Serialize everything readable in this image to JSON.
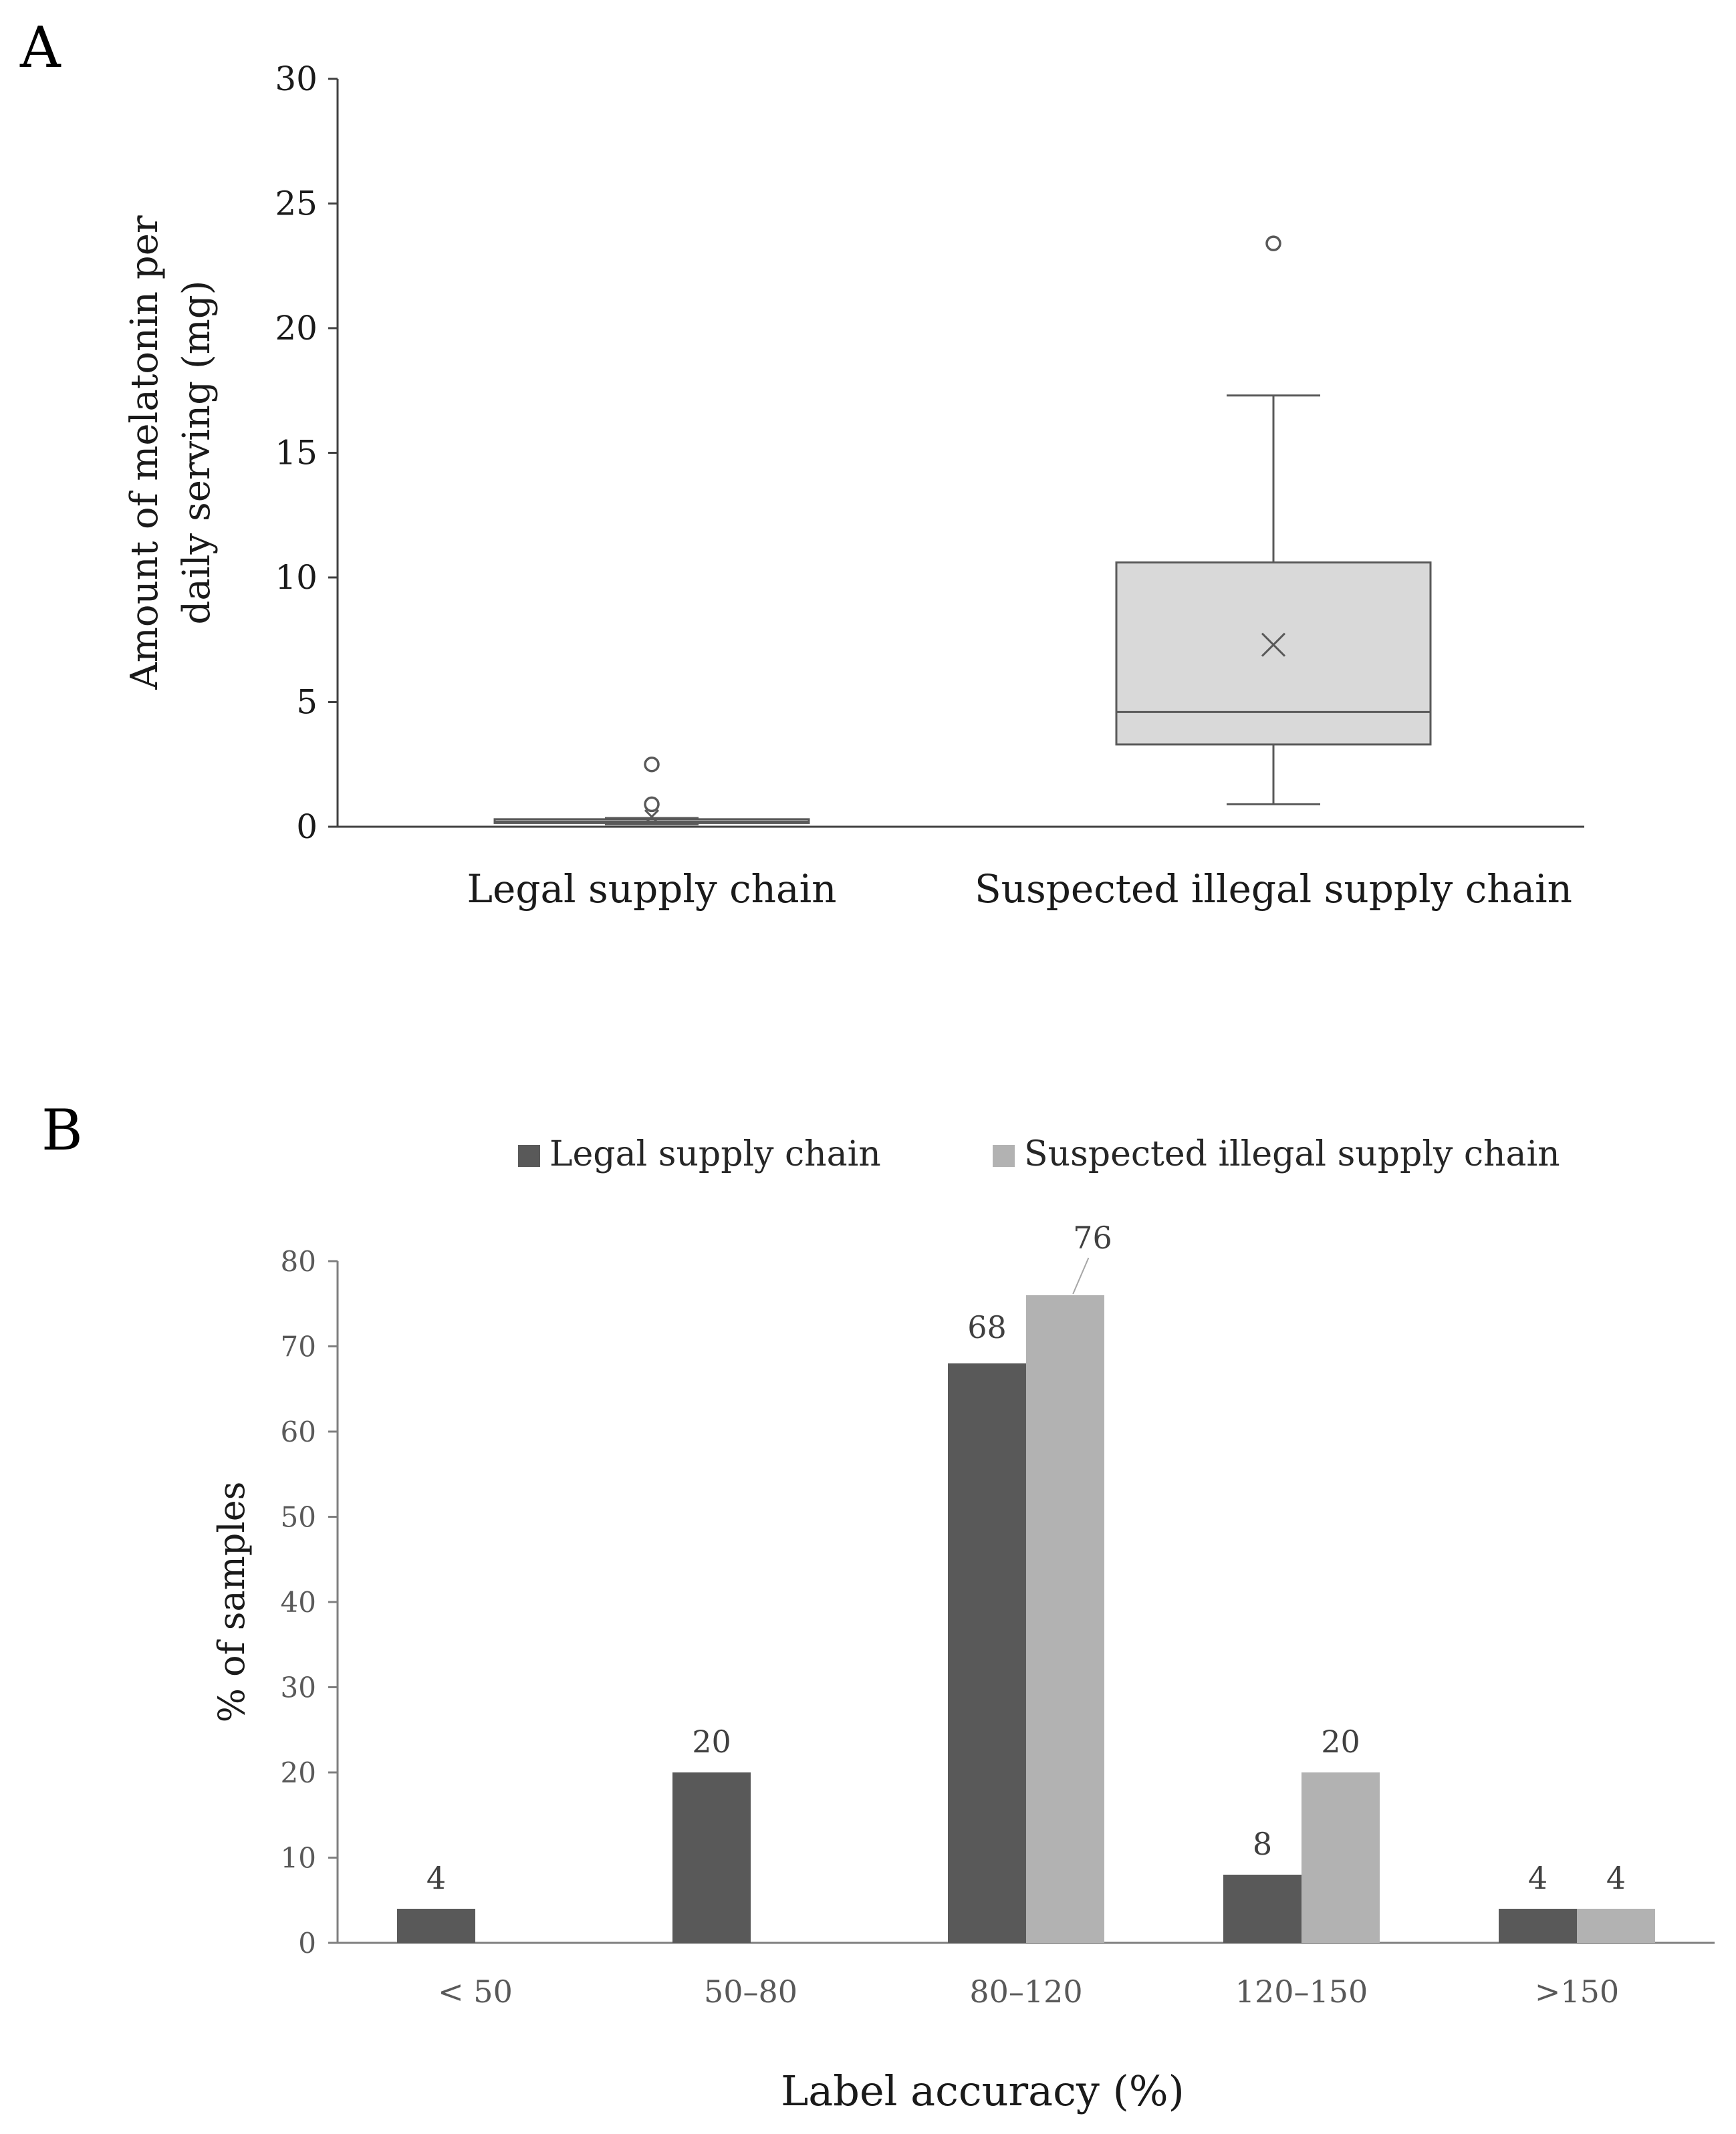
{
  "chart_data": [
    {
      "panel": "A",
      "type": "box",
      "ylabel_lines": [
        "Amount of melatonin per",
        "daily serving (mg)"
      ],
      "ylim": [
        0,
        30
      ],
      "yticks": [
        0,
        5,
        10,
        15,
        20,
        25,
        30
      ],
      "categories": [
        "Legal supply chain",
        "Suspected illegal supply chain"
      ],
      "boxes": [
        {
          "name": "Legal supply chain",
          "min": 0.1,
          "q1": 0.15,
          "median": 0.2,
          "q3": 0.3,
          "max": 0.35,
          "mean": 0.4,
          "outliers": [
            0.9,
            2.5
          ]
        },
        {
          "name": "Suspected illegal supply chain",
          "min": 0.9,
          "q1": 3.3,
          "median": 4.6,
          "q3": 10.6,
          "max": 17.3,
          "mean": 7.3,
          "outliers": [
            23.4
          ]
        }
      ],
      "colors": {
        "box_fill": "#d9d9d9",
        "stroke": "#595959",
        "legal_box_fill": "#bfbfbf"
      }
    },
    {
      "panel": "B",
      "type": "bar",
      "categories": [
        "< 50",
        "50–80",
        "80–120",
        "120–150",
        ">150"
      ],
      "series": [
        {
          "name": "Legal supply chain",
          "values": [
            4,
            20,
            68,
            8,
            4
          ],
          "color": "#595959",
          "labels": [
            "4",
            "20",
            "68",
            "8",
            "4"
          ]
        },
        {
          "name": "Suspected illegal supply chain",
          "values": [
            0,
            0,
            76,
            20,
            4
          ],
          "color": "#b2b2b2",
          "labels": [
            "",
            "",
            "76",
            "20",
            "4"
          ]
        }
      ],
      "xlabel": "Label accuracy (%)",
      "ylabel": "% of samples",
      "ylim": [
        0,
        80
      ],
      "yticks": [
        0,
        10,
        20,
        30,
        40,
        50,
        60,
        70,
        80
      ],
      "legend": "top"
    }
  ]
}
